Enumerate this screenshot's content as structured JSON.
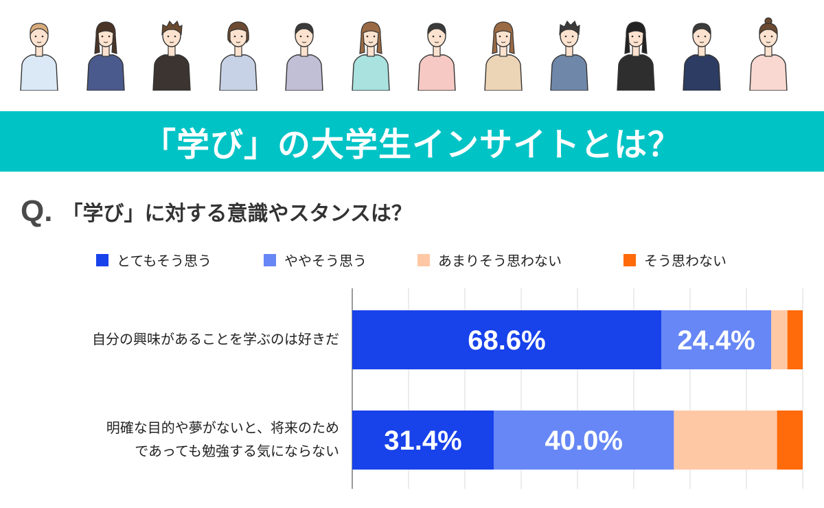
{
  "banner": {
    "title": "「学び」の大学生インサイトとは？"
  },
  "question": {
    "mark": "Q.",
    "text": "「学び」に対する意識やスタンスは？"
  },
  "colors": {
    "strongly_agree": "#1842ea",
    "somewhat_agree": "#6687f5",
    "somewhat_disagree": "#ffc8a5",
    "disagree": "#ff6a0a",
    "banner": "#00c3c6",
    "grid": "#d9d9d9",
    "axis": "#999999"
  },
  "illustrations": [
    "person-icon-1",
    "person-icon-2",
    "person-icon-3",
    "person-icon-4",
    "person-icon-5",
    "person-icon-6",
    "person-icon-7",
    "person-icon-8",
    "person-icon-9",
    "person-icon-10",
    "person-icon-11",
    "person-icon-12"
  ],
  "chart_data": {
    "type": "bar",
    "orientation": "horizontal",
    "stacked": true,
    "categories": [
      "自分の興味があることを学ぶのは好きだ",
      "明確な目的や夢がないと、将来のためであっても勉強する気にならない"
    ],
    "category_lines": [
      [
        "自分の興味があることを学ぶのは好きだ"
      ],
      [
        "明確な目的や夢がないと、将来のため",
        "であっても勉強する気にならない"
      ]
    ],
    "series": [
      {
        "name": "とてもそう思う",
        "values": [
          68.6,
          31.4
        ],
        "labels": [
          "68.6%",
          "31.4%"
        ]
      },
      {
        "name": "ややそう思う",
        "values": [
          24.4,
          40.0
        ],
        "labels": [
          "24.4%",
          "40.0%"
        ]
      },
      {
        "name": "あまりそう思わない",
        "values": [
          3.6,
          22.9
        ],
        "labels": [
          "",
          ""
        ]
      },
      {
        "name": "そう思わない",
        "values": [
          3.4,
          5.7
        ],
        "labels": [
          "",
          ""
        ]
      }
    ],
    "xlim": [
      0,
      100
    ],
    "grid": true,
    "legend_position": "top"
  }
}
